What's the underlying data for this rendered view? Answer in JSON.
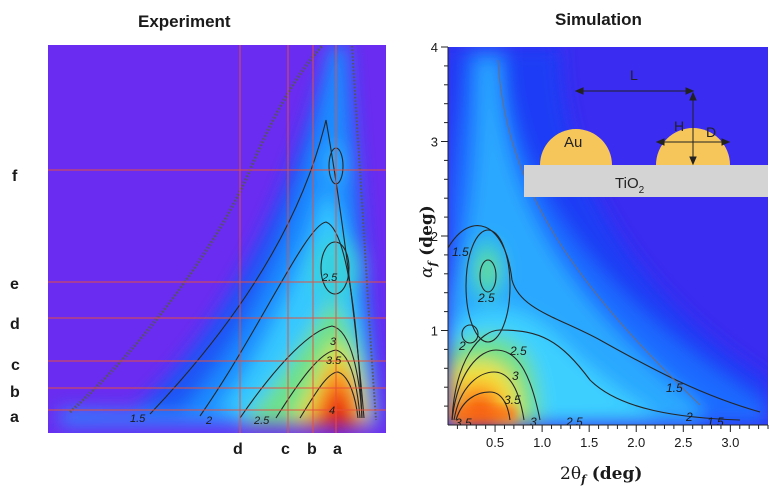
{
  "panels": {
    "experiment": {
      "title": "Experiment",
      "row_labels": [
        "f",
        "e",
        "d",
        "c",
        "b",
        "a"
      ],
      "col_labels": [
        "d",
        "c",
        "b",
        "a"
      ],
      "contour_labels": [
        "1.5",
        "2",
        "2.5",
        "2.5",
        "3",
        "3.5",
        "4"
      ]
    },
    "simulation": {
      "title": "Simulation",
      "contour_labels": [
        "1.5",
        "2",
        "2.5",
        "2.5",
        "3",
        "3.5",
        "3.5",
        "1.5",
        "2",
        "1.5",
        "2.5",
        "3"
      ],
      "schematic": {
        "particle_label": "Au",
        "substrate_main": "TiO",
        "substrate_sub": "2",
        "spacing_label": "L",
        "height_label": "H",
        "diameter_label": "D"
      }
    }
  },
  "colors": {
    "background_low": "#6a2cf0",
    "mid_blue": "#1a5cff",
    "cyan": "#35c8ff",
    "green": "#6ee08a",
    "yellow": "#f2e23a",
    "orange": "#ff8a1a",
    "red": "#e8240c",
    "grid_line": "#e8503a",
    "particle": "#f7c65a",
    "substrate": "#d4d4d4"
  },
  "chart_data": [
    {
      "type": "heatmap",
      "title": "Experiment",
      "axes_shown": false,
      "horizontal_cut_labels": [
        "f",
        "e",
        "d",
        "c",
        "b",
        "a"
      ],
      "vertical_cut_labels": [
        "d",
        "c",
        "b",
        "a"
      ],
      "contour_levels": [
        1.5,
        2,
        2.5,
        3,
        3.5,
        4
      ]
    },
    {
      "type": "heatmap",
      "title": "Simulation",
      "xlabel": "2θf (deg)",
      "ylabel": "αf (deg)",
      "xlim": [
        0,
        3.4
      ],
      "ylim": [
        0,
        4
      ],
      "xticks": [
        0.5,
        1.0,
        1.5,
        2.0,
        2.5,
        3.0
      ],
      "xtick_labels": [
        "0.5",
        "1.0",
        "1.5",
        "2.0",
        "2.5",
        "3.0"
      ],
      "yticks": [
        1,
        2,
        3,
        4
      ],
      "ytick_labels": [
        "1",
        "2",
        "3",
        "4"
      ],
      "contour_levels": [
        1.5,
        2,
        2.5,
        3,
        3.5
      ]
    }
  ]
}
